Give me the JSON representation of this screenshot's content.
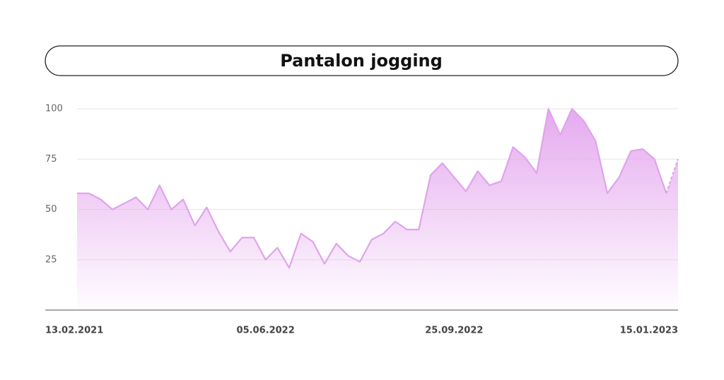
{
  "chart_data": {
    "type": "area",
    "title": "Pantalon jogging",
    "categories": [
      "13.02.2021",
      null,
      null,
      null,
      null,
      null,
      null,
      null,
      null,
      null,
      null,
      null,
      null,
      null,
      null,
      null,
      "05.06.2022",
      null,
      null,
      null,
      null,
      null,
      null,
      null,
      null,
      null,
      null,
      null,
      null,
      null,
      null,
      null,
      "25.09.2022",
      null,
      null,
      null,
      null,
      null,
      null,
      null,
      null,
      null,
      null,
      null,
      null,
      null,
      null,
      null,
      null,
      null,
      null,
      "15.01.2023"
    ],
    "series": [
      {
        "name": "Pantalon jogging",
        "color": "#e0a3ec",
        "values": [
          58,
          58,
          55,
          50,
          53,
          56,
          50,
          62,
          50,
          55,
          42,
          51,
          39,
          29,
          36,
          36,
          25,
          31,
          21,
          38,
          34,
          23,
          33,
          27,
          24,
          35,
          38,
          44,
          40,
          40,
          67,
          73,
          66,
          59,
          69,
          62,
          64,
          81,
          76,
          68,
          100,
          87,
          100,
          94,
          84,
          58,
          66,
          79,
          80,
          75,
          58,
          75
        ]
      }
    ],
    "ylim": [
      0,
      100
    ],
    "yticks": [
      25,
      50,
      75,
      100
    ],
    "grid": true
  }
}
